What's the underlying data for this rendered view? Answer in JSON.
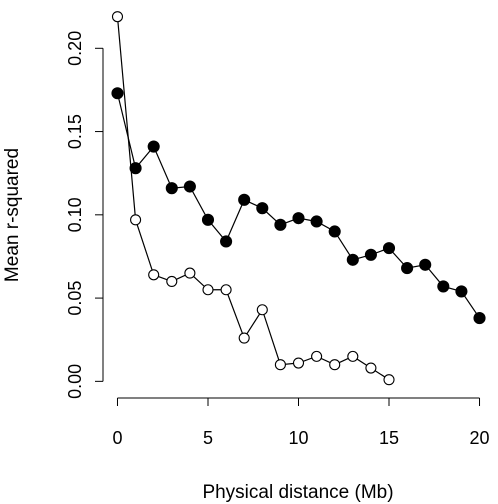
{
  "chart_data": {
    "type": "line",
    "title": "",
    "xlabel": "Physical distance (Mb)",
    "ylabel": "Mean r-squared",
    "xlim": [
      -0.8,
      20.8
    ],
    "ylim": [
      -0.01,
      0.226
    ],
    "xticks": [
      0,
      5,
      10,
      15,
      20
    ],
    "xtick_labels": [
      "0",
      "5",
      "10",
      "15",
      "20"
    ],
    "yticks": [
      0.0,
      0.05,
      0.1,
      0.15,
      0.2
    ],
    "ytick_labels": [
      "0.00",
      "0.05",
      "0.10",
      "0.15",
      "0.20"
    ],
    "grid": false,
    "legend": "none",
    "series": [
      {
        "marker": "filled-circle",
        "color": "#000000",
        "x": [
          0,
          1,
          2,
          3,
          4,
          5,
          6,
          7,
          8,
          9,
          10,
          11,
          12,
          13,
          14,
          15,
          16,
          17,
          18,
          19,
          20
        ],
        "values": [
          0.173,
          0.128,
          0.141,
          0.116,
          0.117,
          0.097,
          0.084,
          0.109,
          0.104,
          0.094,
          0.098,
          0.096,
          0.09,
          0.073,
          0.076,
          0.08,
          0.068,
          0.07,
          0.057,
          0.054,
          0.038
        ]
      },
      {
        "marker": "open-circle",
        "color": "#000000",
        "x": [
          0,
          1,
          2,
          3,
          4,
          5,
          6,
          7,
          8,
          9,
          10,
          11,
          12,
          13,
          14,
          15
        ],
        "values": [
          0.219,
          0.097,
          0.064,
          0.06,
          0.065,
          0.055,
          0.055,
          0.026,
          0.043,
          0.01,
          0.011,
          0.015,
          0.01,
          0.015,
          0.008,
          0.001
        ]
      }
    ]
  }
}
